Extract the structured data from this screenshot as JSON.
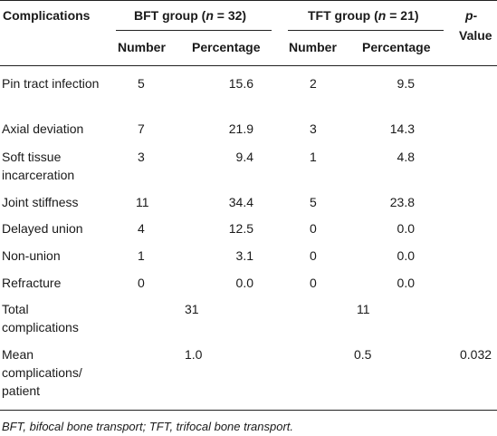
{
  "table": {
    "header": {
      "complications": "Complications",
      "bft_group_prefix": "BFT group (",
      "bft_group_n": "n",
      "bft_group_suffix": " = 32)",
      "tft_group_prefix": "TFT group (",
      "tft_group_n": "n",
      "tft_group_suffix": " = 21)",
      "p_value_top": "p-",
      "p_value_bottom": "Value",
      "number": "Number",
      "percentage": "Percentage"
    },
    "rows": [
      {
        "label": "Pin tract infection",
        "bft_number": "5",
        "bft_pct": "15.6",
        "tft_number": "2",
        "tft_pct": "9.5",
        "p": ""
      },
      {
        "label": "Axial deviation",
        "bft_number": "7",
        "bft_pct": "21.9",
        "tft_number": "3",
        "tft_pct": "14.3",
        "p": ""
      },
      {
        "label": "Soft tissue incarceration",
        "bft_number": "3",
        "bft_pct": "9.4",
        "tft_number": "1",
        "tft_pct": "4.8",
        "p": ""
      },
      {
        "label": "Joint stiffness",
        "bft_number": "11",
        "bft_pct": "34.4",
        "tft_number": "5",
        "tft_pct": "23.8",
        "p": ""
      },
      {
        "label": "Delayed union",
        "bft_number": "4",
        "bft_pct": "12.5",
        "tft_number": "0",
        "tft_pct": "0.0",
        "p": ""
      },
      {
        "label": "Non-union",
        "bft_number": "1",
        "bft_pct": "3.1",
        "tft_number": "0",
        "tft_pct": "0.0",
        "p": ""
      },
      {
        "label": "Refracture",
        "bft_number": "0",
        "bft_pct": "0.0",
        "tft_number": "0",
        "tft_pct": "0.0",
        "p": ""
      },
      {
        "label": "Total complications",
        "bft_total": "31",
        "tft_total": "11",
        "p": ""
      },
      {
        "label": "Mean complications/ patient",
        "bft_total": "1.0",
        "tft_total": "0.5",
        "p": "0.032"
      }
    ]
  },
  "footnote": "BFT, bifocal bone transport; TFT, trifocal bone transport."
}
